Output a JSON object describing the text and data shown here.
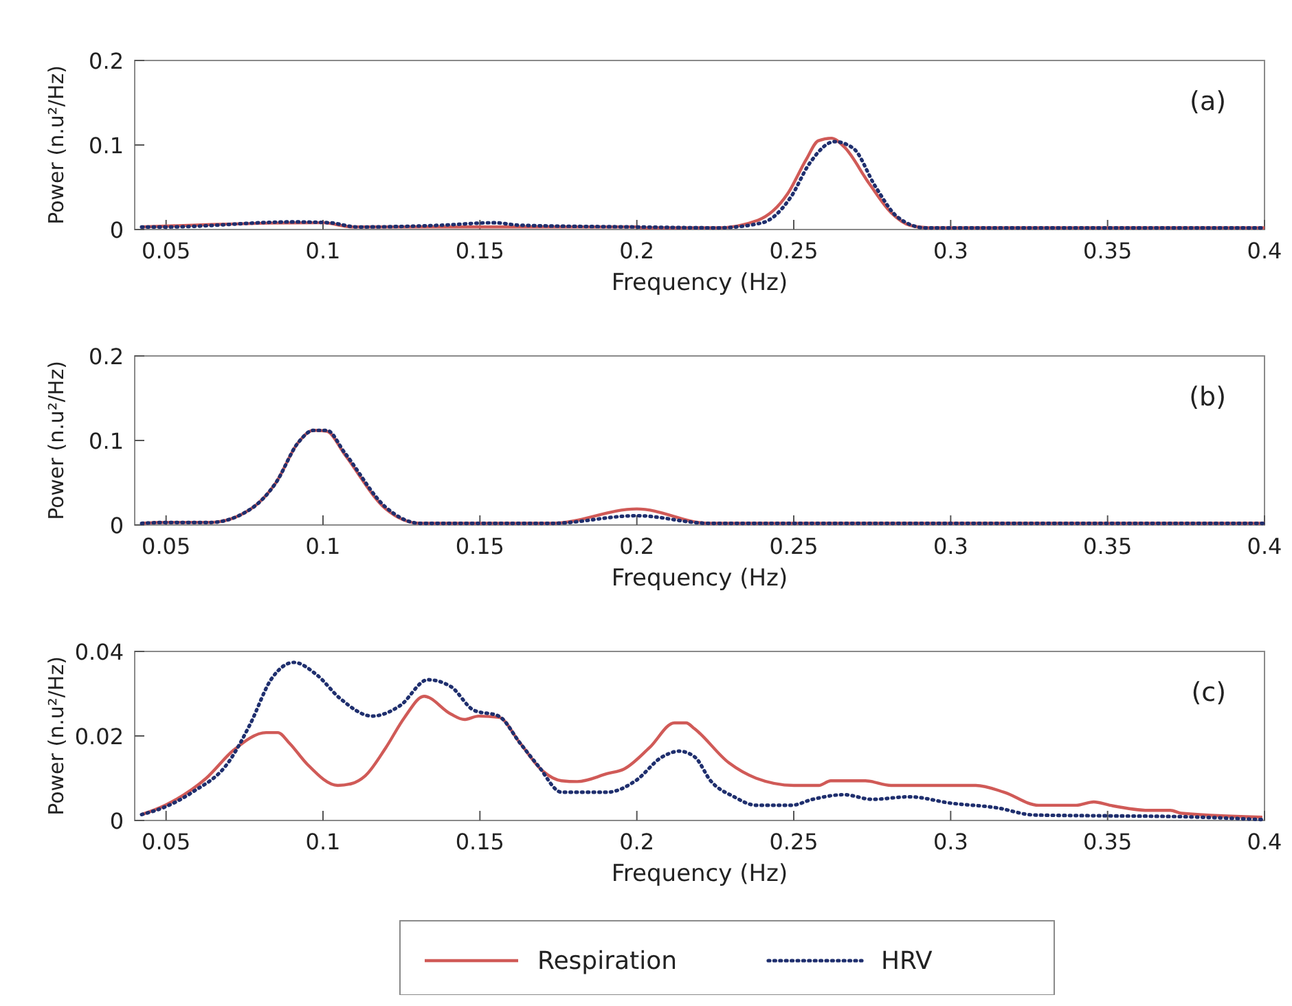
{
  "chart_data": [
    {
      "type": "line",
      "xlabel": "Frequency (Hz)",
      "ylabel": "Power (n.u²/Hz)",
      "annotations": [
        "(a)"
      ],
      "xlim": [
        0.04,
        0.4
      ],
      "ylim": [
        0,
        0.2
      ],
      "xticks": [
        0.05,
        0.1,
        0.15,
        0.2,
        0.25,
        0.3,
        0.35,
        0.4
      ],
      "yticks": [
        0,
        0.1,
        0.2
      ],
      "grid": false,
      "legend": false,
      "series": [
        {
          "color": "#d05a57",
          "line_style": "solid",
          "x": [
            0.0422,
            0.0646,
            0.1,
            0.1095,
            0.2,
            0.202,
            0.2257,
            0.2386,
            0.248,
            0.254,
            0.2578,
            0.262,
            0.266,
            0.2741,
            0.281,
            0.287,
            0.293,
            0.4
          ],
          "values": [
            0.003,
            0.006,
            0.008,
            0.003,
            0.003,
            0.002,
            0.002,
            0.011,
            0.042,
            0.083,
            0.105,
            0.108,
            0.098,
            0.054,
            0.02,
            0.005,
            0.002,
            0.002
          ]
        },
        {
          "color": "#1f2f6e",
          "line_style": "dotted",
          "x": [
            0.0422,
            0.05,
            0.09,
            0.102,
            0.111,
            0.137,
            0.1545,
            0.163,
            0.2,
            0.2257,
            0.24,
            0.249,
            0.255,
            0.263,
            0.269,
            0.276,
            0.283,
            0.292,
            0.4
          ],
          "values": [
            0.003,
            0.003,
            0.009,
            0.008,
            0.003,
            0.005,
            0.008,
            0.005,
            0.003,
            0.002,
            0.008,
            0.038,
            0.078,
            0.104,
            0.096,
            0.051,
            0.015,
            0.002,
            0.002
          ]
        }
      ]
    },
    {
      "type": "line",
      "xlabel": "Frequency (Hz)",
      "ylabel": "Power (n.u²/Hz)",
      "annotations": [
        "(b)"
      ],
      "xlim": [
        0.04,
        0.4
      ],
      "ylim": [
        0,
        0.2
      ],
      "xticks": [
        0.05,
        0.1,
        0.15,
        0.2,
        0.25,
        0.3,
        0.35,
        0.4
      ],
      "yticks": [
        0,
        0.1,
        0.2
      ],
      "grid": false,
      "legend": false,
      "series": [
        {
          "color": "#d05a57",
          "line_style": "solid",
          "x": [
            0.0422,
            0.05,
            0.064,
            0.077,
            0.085,
            0.092,
            0.097,
            0.1012,
            0.107,
            0.12,
            0.131,
            0.173,
            0.2,
            0.223,
            0.4
          ],
          "values": [
            0.002,
            0.003,
            0.003,
            0.019,
            0.05,
            0.097,
            0.112,
            0.111,
            0.083,
            0.019,
            0.002,
            0.002,
            0.019,
            0.002,
            0.002
          ]
        },
        {
          "color": "#1f2f6e",
          "line_style": "dotted",
          "x": [
            0.0422,
            0.05,
            0.064,
            0.077,
            0.085,
            0.092,
            0.097,
            0.1012,
            0.107,
            0.12,
            0.131,
            0.173,
            0.2,
            0.223,
            0.4
          ],
          "values": [
            0.002,
            0.003,
            0.003,
            0.019,
            0.05,
            0.097,
            0.112,
            0.112,
            0.085,
            0.021,
            0.002,
            0.002,
            0.011,
            0.002,
            0.002
          ]
        }
      ]
    },
    {
      "type": "line",
      "xlabel": "Frequency (Hz)",
      "ylabel": "Power (n.u²/Hz)",
      "annotations": [
        "(c)"
      ],
      "xlim": [
        0.04,
        0.4
      ],
      "ylim": [
        0,
        0.04
      ],
      "xticks": [
        0.05,
        0.1,
        0.15,
        0.2,
        0.25,
        0.3,
        0.35,
        0.4
      ],
      "yticks": [
        0,
        0.02,
        0.04
      ],
      "grid": false,
      "legend": "bottom",
      "series": [
        {
          "name": "Respiration",
          "color": "#d05a57",
          "line_style": "solid",
          "x": [
            0.0422,
            0.05,
            0.0628,
            0.0716,
            0.0819,
            0.0856,
            0.0893,
            0.095,
            0.1047,
            0.109,
            0.1135,
            0.12,
            0.126,
            0.1322,
            0.1407,
            0.145,
            0.1496,
            0.156,
            0.1628,
            0.17,
            0.176,
            0.181,
            0.1907,
            0.196,
            0.204,
            0.212,
            0.2157,
            0.2184,
            0.2294,
            0.238,
            0.25,
            0.258,
            0.2618,
            0.2728,
            0.281,
            0.308,
            0.317,
            0.328,
            0.34,
            0.3456,
            0.3507,
            0.363,
            0.37,
            0.3735,
            0.3993
          ],
          "values": [
            0.0014,
            0.0037,
            0.01,
            0.0167,
            0.0208,
            0.0208,
            0.0183,
            0.0133,
            0.0083,
            0.0087,
            0.0106,
            0.0172,
            0.0244,
            0.0294,
            0.0252,
            0.0239,
            0.0247,
            0.0244,
            0.0183,
            0.0117,
            0.0094,
            0.0092,
            0.0111,
            0.0122,
            0.0172,
            0.0231,
            0.0231,
            0.0217,
            0.0136,
            0.01,
            0.0083,
            0.0083,
            0.0094,
            0.0094,
            0.0083,
            0.0083,
            0.0067,
            0.0036,
            0.0036,
            0.0044,
            0.0036,
            0.0024,
            0.0024,
            0.0017,
            0.0008
          ]
        },
        {
          "name": "HRV",
          "color": "#1f2f6e",
          "line_style": "dotted",
          "x": [
            0.0422,
            0.05,
            0.0584,
            0.07,
            0.0768,
            0.0834,
            0.0907,
            0.0981,
            0.1054,
            0.1157,
            0.1246,
            0.1334,
            0.1407,
            0.148,
            0.156,
            0.1628,
            0.1687,
            0.176,
            0.1907,
            0.1996,
            0.208,
            0.2135,
            0.2185,
            0.2235,
            0.231,
            0.238,
            0.2493,
            0.256,
            0.266,
            0.275,
            0.2868,
            0.3,
            0.3147,
            0.3265,
            0.35,
            0.3735,
            0.3993
          ],
          "values": [
            0.0014,
            0.0033,
            0.0067,
            0.0139,
            0.0228,
            0.0333,
            0.0374,
            0.0344,
            0.0289,
            0.0247,
            0.0272,
            0.0333,
            0.0317,
            0.0261,
            0.0247,
            0.0183,
            0.0128,
            0.0067,
            0.0067,
            0.0094,
            0.015,
            0.0164,
            0.015,
            0.0094,
            0.0056,
            0.0036,
            0.0036,
            0.005,
            0.0061,
            0.005,
            0.0056,
            0.0041,
            0.003,
            0.0013,
            0.0011,
            0.0009,
            0.0002
          ]
        }
      ]
    }
  ]
}
